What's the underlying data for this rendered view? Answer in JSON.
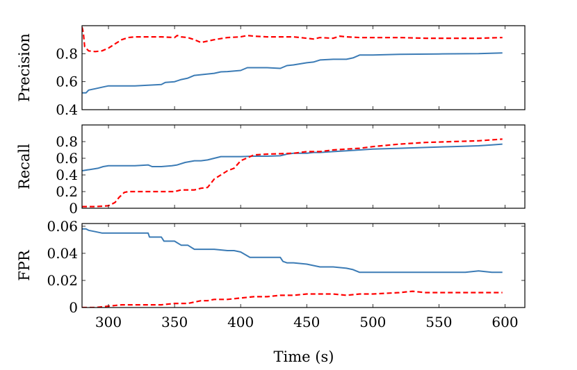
{
  "chart_data": [
    {
      "type": "line",
      "ylabel": "Precision",
      "xlim": [
        280,
        615
      ],
      "ylim": [
        0.4,
        1.0
      ],
      "yticks": [
        0.4,
        0.6,
        0.8
      ],
      "ytick_labels": [
        "0.4",
        "0.6",
        "0.8"
      ],
      "series": [
        {
          "color": "#3b7bb5",
          "style": "solid",
          "x": [
            280,
            283,
            285,
            290,
            295,
            300,
            310,
            320,
            330,
            340,
            343,
            350,
            355,
            360,
            365,
            370,
            380,
            385,
            390,
            400,
            405,
            410,
            420,
            430,
            435,
            440,
            450,
            455,
            460,
            470,
            480,
            485,
            490,
            500,
            520,
            550,
            580,
            598
          ],
          "y": [
            0.52,
            0.52,
            0.54,
            0.55,
            0.56,
            0.57,
            0.57,
            0.57,
            0.575,
            0.58,
            0.595,
            0.6,
            0.615,
            0.625,
            0.645,
            0.65,
            0.66,
            0.67,
            0.672,
            0.68,
            0.7,
            0.7,
            0.7,
            0.695,
            0.715,
            0.72,
            0.735,
            0.74,
            0.755,
            0.76,
            0.76,
            0.77,
            0.79,
            0.79,
            0.795,
            0.798,
            0.8,
            0.805
          ]
        },
        {
          "color": "#ff0000",
          "style": "dashed",
          "x": [
            280,
            281,
            282,
            285,
            290,
            295,
            300,
            305,
            310,
            315,
            320,
            340,
            350,
            352,
            355,
            360,
            365,
            370,
            380,
            390,
            400,
            405,
            410,
            420,
            440,
            450,
            455,
            460,
            470,
            475,
            480,
            490,
            520,
            540,
            560,
            580,
            598
          ],
          "y": [
            0.99,
            0.95,
            0.85,
            0.82,
            0.815,
            0.82,
            0.84,
            0.87,
            0.9,
            0.915,
            0.92,
            0.92,
            0.915,
            0.93,
            0.92,
            0.915,
            0.9,
            0.88,
            0.9,
            0.915,
            0.92,
            0.93,
            0.925,
            0.92,
            0.92,
            0.91,
            0.905,
            0.915,
            0.91,
            0.925,
            0.92,
            0.915,
            0.915,
            0.91,
            0.91,
            0.91,
            0.915
          ]
        }
      ]
    },
    {
      "type": "line",
      "ylabel": "Recall",
      "xlim": [
        280,
        615
      ],
      "ylim": [
        0,
        1.0
      ],
      "yticks": [
        0,
        0.2,
        0.4,
        0.6,
        0.8
      ],
      "ytick_labels": [
        "0",
        "0.2",
        "0.4",
        "0.6",
        "0.8"
      ],
      "series": [
        {
          "color": "#3b7bb5",
          "style": "solid",
          "x": [
            280,
            284,
            288,
            292,
            296,
            300,
            310,
            320,
            330,
            333,
            340,
            348,
            352,
            358,
            365,
            370,
            375,
            380,
            385,
            390,
            400,
            410,
            420,
            430,
            435,
            440,
            450,
            455,
            460,
            470,
            480,
            490,
            500,
            520,
            540,
            560,
            580,
            590,
            598
          ],
          "y": [
            0.45,
            0.46,
            0.47,
            0.48,
            0.5,
            0.51,
            0.51,
            0.51,
            0.52,
            0.5,
            0.5,
            0.51,
            0.52,
            0.55,
            0.57,
            0.57,
            0.58,
            0.6,
            0.62,
            0.62,
            0.62,
            0.625,
            0.625,
            0.63,
            0.65,
            0.66,
            0.66,
            0.67,
            0.67,
            0.68,
            0.69,
            0.7,
            0.71,
            0.72,
            0.73,
            0.74,
            0.75,
            0.76,
            0.77
          ]
        },
        {
          "color": "#ff0000",
          "style": "dashed",
          "x": [
            280,
            290,
            300,
            305,
            308,
            312,
            315,
            320,
            340,
            350,
            355,
            360,
            365,
            370,
            375,
            380,
            385,
            390,
            395,
            400,
            410,
            420,
            440,
            450,
            460,
            470,
            480,
            490,
            500,
            520,
            540,
            560,
            580,
            598
          ],
          "y": [
            0.02,
            0.02,
            0.03,
            0.07,
            0.13,
            0.19,
            0.2,
            0.2,
            0.2,
            0.2,
            0.22,
            0.22,
            0.22,
            0.24,
            0.25,
            0.35,
            0.4,
            0.45,
            0.48,
            0.57,
            0.64,
            0.65,
            0.66,
            0.68,
            0.68,
            0.7,
            0.71,
            0.72,
            0.74,
            0.77,
            0.79,
            0.8,
            0.81,
            0.83
          ]
        }
      ]
    },
    {
      "type": "line",
      "ylabel": "FPR",
      "xlabel": "Time (s)",
      "xlim": [
        280,
        615
      ],
      "ylim": [
        0,
        0.062
      ],
      "yticks": [
        0,
        0.02,
        0.04,
        0.06
      ],
      "ytick_labels": [
        "0",
        "0.02",
        "0.04",
        "0.06"
      ],
      "xticks": [
        300,
        350,
        400,
        450,
        500,
        550,
        600
      ],
      "xtick_labels": [
        "300",
        "350",
        "400",
        "450",
        "500",
        "550",
        "600"
      ],
      "series": [
        {
          "color": "#3b7bb5",
          "style": "solid",
          "x": [
            280,
            283,
            285,
            290,
            295,
            300,
            310,
            320,
            330,
            331,
            340,
            342,
            345,
            350,
            355,
            360,
            365,
            370,
            375,
            380,
            390,
            395,
            400,
            407,
            410,
            420,
            430,
            432,
            435,
            440,
            450,
            460,
            470,
            480,
            485,
            490,
            500,
            520,
            540,
            560,
            570,
            580,
            590,
            598
          ],
          "y": [
            0.058,
            0.058,
            0.057,
            0.056,
            0.055,
            0.055,
            0.055,
            0.055,
            0.055,
            0.052,
            0.052,
            0.049,
            0.049,
            0.049,
            0.046,
            0.046,
            0.043,
            0.043,
            0.043,
            0.043,
            0.042,
            0.042,
            0.041,
            0.037,
            0.037,
            0.037,
            0.037,
            0.034,
            0.033,
            0.033,
            0.032,
            0.03,
            0.03,
            0.029,
            0.028,
            0.026,
            0.026,
            0.026,
            0.026,
            0.026,
            0.026,
            0.027,
            0.026,
            0.026
          ]
        },
        {
          "color": "#ff0000",
          "style": "dashed",
          "x": [
            280,
            290,
            300,
            310,
            320,
            330,
            340,
            350,
            360,
            370,
            375,
            380,
            390,
            400,
            410,
            420,
            430,
            440,
            450,
            460,
            470,
            480,
            490,
            500,
            520,
            530,
            540,
            560,
            580,
            598
          ],
          "y": [
            0.0,
            0.0,
            0.001,
            0.002,
            0.002,
            0.002,
            0.002,
            0.003,
            0.003,
            0.005,
            0.005,
            0.006,
            0.006,
            0.007,
            0.008,
            0.008,
            0.009,
            0.009,
            0.01,
            0.01,
            0.01,
            0.009,
            0.01,
            0.01,
            0.011,
            0.012,
            0.011,
            0.011,
            0.011,
            0.011
          ]
        }
      ]
    }
  ]
}
